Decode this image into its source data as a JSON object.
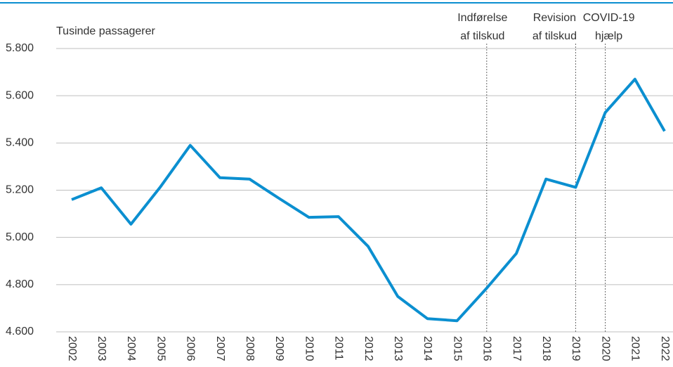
{
  "chart_data": {
    "type": "line",
    "ylabel": "Tusinde passagerer",
    "categories": [
      "2002",
      "2003",
      "2004",
      "2005",
      "2006",
      "2007",
      "2008",
      "2009",
      "2010",
      "2011",
      "2012",
      "2013",
      "2014",
      "2015",
      "2016",
      "2017",
      "2018",
      "2019",
      "2020",
      "2021",
      "2022"
    ],
    "series": [
      {
        "name": "Passagerer",
        "color": "#0b8fd0",
        "values": [
          5160,
          5210,
          5056,
          5215,
          5390,
          5253,
          5247,
          5165,
          5085,
          5088,
          4962,
          4750,
          4656,
          4647,
          4785,
          4932,
          5247,
          5212,
          5529,
          5670,
          5450
        ]
      }
    ],
    "ylim": [
      4600,
      5800
    ],
    "yticks": [
      {
        "value": 4600,
        "label": "4.600"
      },
      {
        "value": 4800,
        "label": "4.800"
      },
      {
        "value": 5000,
        "label": "5.000"
      },
      {
        "value": 5200,
        "label": "5.200"
      },
      {
        "value": 5400,
        "label": "5.400"
      },
      {
        "value": 5600,
        "label": "5.600"
      },
      {
        "value": 5800,
        "label": "5.800"
      }
    ],
    "grid": true,
    "annotations": [
      {
        "category": "2016",
        "lines": [
          "Indførelse",
          "af tilskud"
        ]
      },
      {
        "category": "2019",
        "lines": [
          "Revision",
          "af tilskud"
        ]
      },
      {
        "category": "2020",
        "lines": [
          "COVID-19",
          "hjælp"
        ]
      }
    ]
  }
}
